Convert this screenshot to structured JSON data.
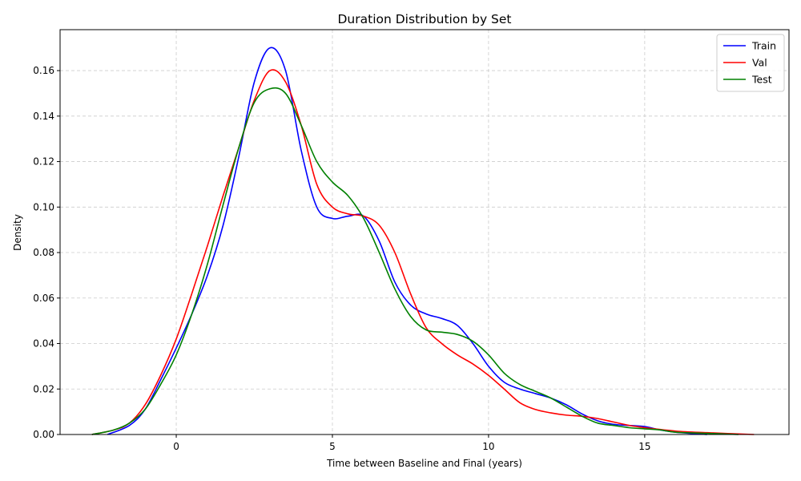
{
  "chart_data": {
    "type": "line",
    "title": "Duration Distribution by Set",
    "xlabel": "Time between Baseline and Final (years)",
    "ylabel": "Density",
    "xlim": [
      -3.72,
      19.62
    ],
    "ylim": [
      0,
      0.178
    ],
    "xticks": [
      0,
      5,
      10,
      15
    ],
    "yticks": [
      0.0,
      0.02,
      0.04,
      0.06,
      0.08,
      0.1,
      0.12,
      0.14,
      0.16
    ],
    "grid": true,
    "legend_position": "upper right",
    "series": [
      {
        "name": "Train",
        "color": "#0000ff",
        "x": [
          -2.2,
          -1.5,
          -1,
          -0.5,
          0,
          0.5,
          1,
          1.5,
          2,
          2.5,
          3,
          3.5,
          4,
          4.5,
          5,
          5.5,
          6,
          6.5,
          7,
          7.5,
          8,
          8.5,
          9,
          9.5,
          10,
          10.5,
          11,
          11.5,
          12,
          12.5,
          13,
          13.5,
          14,
          14.5,
          15,
          15.5,
          16,
          17
        ],
        "y": [
          0.0,
          0.004,
          0.011,
          0.024,
          0.038,
          0.053,
          0.07,
          0.092,
          0.122,
          0.155,
          0.17,
          0.16,
          0.125,
          0.1,
          0.095,
          0.096,
          0.096,
          0.085,
          0.067,
          0.057,
          0.053,
          0.051,
          0.048,
          0.04,
          0.03,
          0.023,
          0.02,
          0.018,
          0.016,
          0.013,
          0.009,
          0.006,
          0.0045,
          0.004,
          0.0035,
          0.002,
          0.001,
          0.0
        ]
      },
      {
        "name": "Val",
        "color": "#ff0000",
        "x": [
          -2.7,
          -2,
          -1.5,
          -1,
          -0.5,
          0,
          0.5,
          1,
          1.5,
          2,
          2.5,
          3,
          3.5,
          4,
          4.5,
          5,
          5.5,
          6,
          6.5,
          7,
          7.5,
          8,
          8.5,
          9,
          9.5,
          10,
          10.5,
          11,
          11.5,
          12,
          12.5,
          13,
          13.5,
          14,
          14.5,
          15,
          16,
          17,
          18.5
        ],
        "y": [
          0.0,
          0.002,
          0.005,
          0.013,
          0.026,
          0.042,
          0.062,
          0.083,
          0.105,
          0.126,
          0.147,
          0.16,
          0.155,
          0.136,
          0.11,
          0.1,
          0.097,
          0.096,
          0.092,
          0.08,
          0.062,
          0.047,
          0.04,
          0.035,
          0.031,
          0.026,
          0.02,
          0.014,
          0.011,
          0.0095,
          0.0085,
          0.008,
          0.007,
          0.0055,
          0.004,
          0.003,
          0.0015,
          0.0008,
          0.0
        ]
      },
      {
        "name": "Test",
        "color": "#008000",
        "x": [
          -2.7,
          -2,
          -1.5,
          -1,
          -0.5,
          0,
          0.5,
          1,
          1.5,
          2,
          2.5,
          3,
          3.5,
          4,
          4.5,
          5,
          5.5,
          6,
          6.5,
          7,
          7.5,
          8,
          8.5,
          9,
          9.5,
          10,
          10.5,
          11,
          11.5,
          12,
          12.5,
          13,
          13.5,
          14,
          14.5,
          15,
          15.5,
          16,
          17,
          18
        ],
        "y": [
          0.0,
          0.002,
          0.005,
          0.011,
          0.022,
          0.035,
          0.053,
          0.075,
          0.101,
          0.126,
          0.146,
          0.152,
          0.15,
          0.136,
          0.12,
          0.111,
          0.105,
          0.095,
          0.08,
          0.064,
          0.052,
          0.046,
          0.045,
          0.044,
          0.041,
          0.035,
          0.027,
          0.022,
          0.019,
          0.016,
          0.012,
          0.008,
          0.005,
          0.004,
          0.003,
          0.0025,
          0.002,
          0.001,
          0.0005,
          0.0
        ]
      }
    ]
  }
}
